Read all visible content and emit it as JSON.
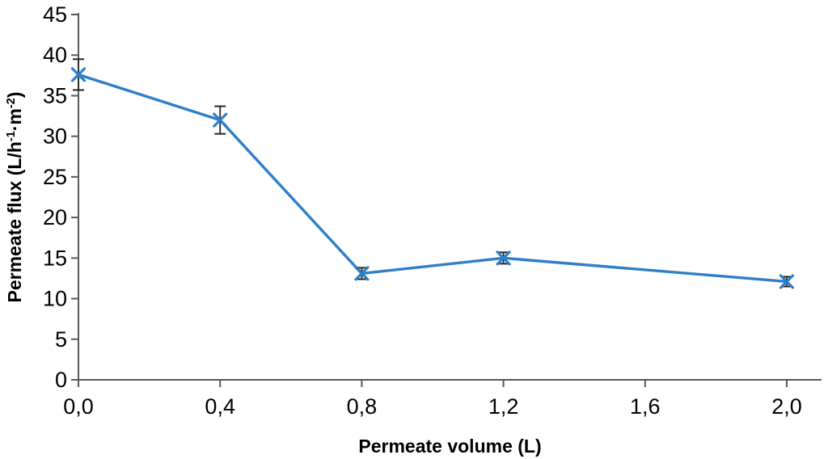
{
  "chart_data": {
    "type": "line",
    "title": "",
    "xlabel": "Permeate volume (L)",
    "ylabel_plain": "Permeate flux (L/h-1·m-2)",
    "ylabel_runs": [
      {
        "text": "Permeate flux (L/h",
        "sup": false
      },
      {
        "text": "-1",
        "sup": true
      },
      {
        "text": "·m",
        "sup": false
      },
      {
        "text": "-2",
        "sup": true
      },
      {
        "text": ")",
        "sup": false
      }
    ],
    "series": [
      {
        "name": "permeate-flux",
        "x": [
          0.0,
          0.4,
          0.8,
          1.2,
          2.0
        ],
        "y": [
          37.6,
          32.0,
          13.1,
          15.0,
          12.1
        ],
        "yerr": [
          1.9,
          1.7,
          0.7,
          0.7,
          0.6
        ],
        "marker": "x"
      }
    ],
    "xticks": {
      "values": [
        0.0,
        0.4,
        0.8,
        1.2,
        1.6,
        2.0
      ],
      "labels": [
        "0,0",
        "0,4",
        "0,8",
        "1,2",
        "1,6",
        "2,0"
      ]
    },
    "yticks": {
      "values": [
        0,
        5,
        10,
        15,
        20,
        25,
        30,
        35,
        40,
        45
      ],
      "labels": [
        "0",
        "5",
        "10",
        "15",
        "20",
        "25",
        "30",
        "35",
        "40",
        "45"
      ]
    },
    "xlim": [
      0,
      2.0
    ],
    "ylim": [
      0,
      45
    ],
    "grid": false,
    "legend": null,
    "colors": {
      "line": "#2e7fc9",
      "marker": "#2e7fc9",
      "error_bar": "#262626",
      "axis": "#595959",
      "text": "#000000"
    }
  }
}
